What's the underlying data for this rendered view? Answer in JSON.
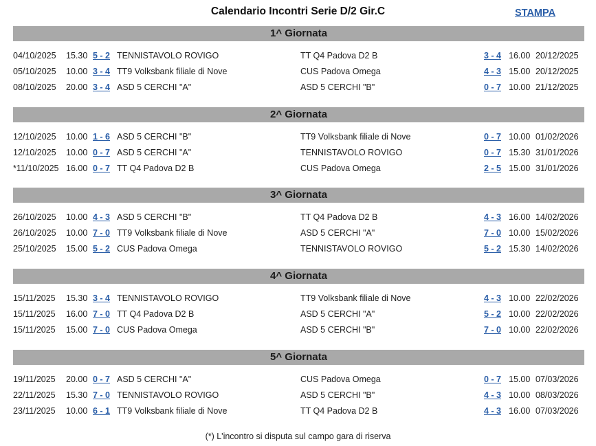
{
  "title": "Calendario Incontri Serie D/2 Gir.C",
  "print_label": "STAMPA",
  "note": "(*) L'incontro si disputa sul campo gara di riserva",
  "rounds": [
    {
      "label": "1^ Giornata",
      "matches": [
        {
          "date1": "04/10/2025",
          "time1": "15.30",
          "score1": "5 - 2",
          "home": "TENNISTAVOLO ROVIGO",
          "away": "TT Q4 Padova D2 B",
          "score2": "3 - 4",
          "time2": "16.00",
          "date2": "20/12/2025"
        },
        {
          "date1": "05/10/2025",
          "time1": "10.00",
          "score1": "3 - 4",
          "home": "TT9 Volksbank filiale di Nove",
          "away": "CUS Padova Omega",
          "score2": "4 - 3",
          "time2": "15.00",
          "date2": "20/12/2025"
        },
        {
          "date1": "08/10/2025",
          "time1": "20.00",
          "score1": "3 - 4",
          "home": "ASD 5 CERCHI \"A\"",
          "away": "ASD 5 CERCHI \"B\"",
          "score2": "0 - 7",
          "time2": "10.00",
          "date2": "21/12/2025"
        }
      ]
    },
    {
      "label": "2^ Giornata",
      "matches": [
        {
          "date1": "12/10/2025",
          "time1": "10.00",
          "score1": "1 - 6",
          "home": "ASD 5 CERCHI \"B\"",
          "away": "TT9 Volksbank filiale di Nove",
          "score2": "0 - 7",
          "time2": "10.00",
          "date2": "01/02/2026"
        },
        {
          "date1": "12/10/2025",
          "time1": "10.00",
          "score1": "0 - 7",
          "home": "ASD 5 CERCHI \"A\"",
          "away": "TENNISTAVOLO ROVIGO",
          "score2": "0 - 7",
          "time2": "15.30",
          "date2": "31/01/2026"
        },
        {
          "date1": "*11/10/2025",
          "time1": "16.00",
          "score1": "0 - 7",
          "home": "TT Q4 Padova D2 B",
          "away": "CUS Padova Omega",
          "score2": "2 - 5",
          "time2": "15.00",
          "date2": "31/01/2026"
        }
      ]
    },
    {
      "label": "3^ Giornata",
      "matches": [
        {
          "date1": "26/10/2025",
          "time1": "10.00",
          "score1": "4 - 3",
          "home": "ASD 5 CERCHI \"B\"",
          "away": "TT Q4 Padova D2 B",
          "score2": "4 - 3",
          "time2": "16.00",
          "date2": "14/02/2026"
        },
        {
          "date1": "26/10/2025",
          "time1": "10.00",
          "score1": "7 - 0",
          "home": "TT9 Volksbank filiale di Nove",
          "away": "ASD 5 CERCHI \"A\"",
          "score2": "7 - 0",
          "time2": "10.00",
          "date2": "15/02/2026"
        },
        {
          "date1": "25/10/2025",
          "time1": "15.00",
          "score1": "5 - 2",
          "home": "CUS Padova Omega",
          "away": "TENNISTAVOLO ROVIGO",
          "score2": "5 - 2",
          "time2": "15.30",
          "date2": "14/02/2026"
        }
      ]
    },
    {
      "label": "4^ Giornata",
      "matches": [
        {
          "date1": "15/11/2025",
          "time1": "15.30",
          "score1": "3 - 4",
          "home": "TENNISTAVOLO ROVIGO",
          "away": "TT9 Volksbank filiale di Nove",
          "score2": "4 - 3",
          "time2": "10.00",
          "date2": "22/02/2026"
        },
        {
          "date1": "15/11/2025",
          "time1": "16.00",
          "score1": "7 - 0",
          "home": "TT Q4 Padova D2 B",
          "away": "ASD 5 CERCHI \"A\"",
          "score2": "5 - 2",
          "time2": "10.00",
          "date2": "22/02/2026"
        },
        {
          "date1": "15/11/2025",
          "time1": "15.00",
          "score1": "7 - 0",
          "home": "CUS Padova Omega",
          "away": "ASD 5 CERCHI \"B\"",
          "score2": "7 - 0",
          "time2": "10.00",
          "date2": "22/02/2026"
        }
      ]
    },
    {
      "label": "5^ Giornata",
      "matches": [
        {
          "date1": "19/11/2025",
          "time1": "20.00",
          "score1": "0 - 7",
          "home": "ASD 5 CERCHI \"A\"",
          "away": "CUS Padova Omega",
          "score2": "0 - 7",
          "time2": "15.00",
          "date2": "07/03/2026"
        },
        {
          "date1": "22/11/2025",
          "time1": "15.30",
          "score1": "7 - 0",
          "home": "TENNISTAVOLO ROVIGO",
          "away": "ASD 5 CERCHI \"B\"",
          "score2": "4 - 3",
          "time2": "10.00",
          "date2": "08/03/2026"
        },
        {
          "date1": "23/11/2025",
          "time1": "10.00",
          "score1": "6 - 1",
          "home": "TT9 Volksbank filiale di Nove",
          "away": "TT Q4 Padova D2 B",
          "score2": "4 - 3",
          "time2": "16.00",
          "date2": "07/03/2026"
        }
      ]
    }
  ]
}
